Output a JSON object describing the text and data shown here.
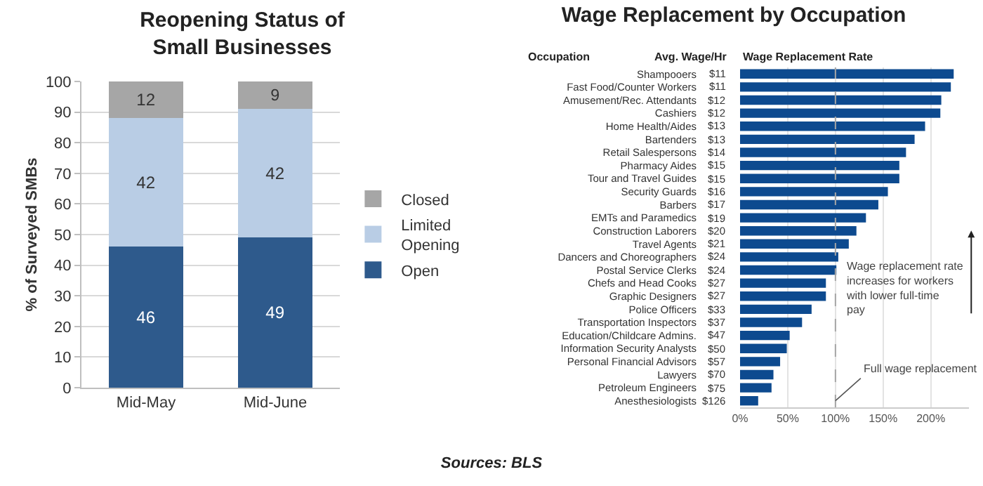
{
  "chart_data": [
    {
      "type": "bar",
      "title": "Reopening Status of Small Businesses",
      "ylabel": "% of Surveyed SMBs",
      "categories": [
        "Mid-May",
        "Mid-June"
      ],
      "stacked": true,
      "data_labels": true,
      "legend": "right",
      "grid": "y",
      "ylim": [
        0,
        100
      ],
      "yticks": [
        0,
        10,
        20,
        30,
        40,
        50,
        60,
        70,
        80,
        90,
        100
      ],
      "series": [
        {
          "name": "Open",
          "color": "#2e5a8c",
          "values": [
            46,
            49
          ]
        },
        {
          "name": "Limited Opening",
          "color": "#b9cde5",
          "values": [
            42,
            42
          ]
        },
        {
          "name": "Closed",
          "color": "#a6a6a6",
          "values": [
            12,
            9
          ]
        }
      ]
    },
    {
      "type": "bar",
      "orientation": "horizontal",
      "title": "Wage Replacement by Occupation",
      "grid": "x",
      "color": "#0d4a8f",
      "categories": [
        "Shampooers",
        "Fast Food/Counter Workers",
        "Amusement/Rec. Attendants",
        "Cashiers",
        "Home Health/Aides",
        "Bartenders",
        "Retail Salespersons",
        "Pharmacy Aides",
        "Tour and Travel Guides",
        "Security Guards",
        "Barbers",
        "EMTs and Paramedics",
        "Construction Laborers",
        "Travel Agents",
        "Dancers and Choreographers",
        "Postal Service Clerks",
        "Chefs and Head Cooks",
        "Graphic Designers",
        "Police Officers",
        "Transportation Inspectors",
        "Education/Childcare Admins.",
        "Information Security Analysts",
        "Personal Financial Advisors",
        "Lawyers",
        "Petroleum Engineers",
        "Anesthesiologists"
      ],
      "values": [
        224,
        221,
        211,
        210,
        194,
        183,
        174,
        167,
        167,
        155,
        145,
        132,
        122,
        114,
        103,
        101,
        90,
        90,
        75,
        65,
        52,
        49,
        42,
        35,
        33,
        19
      ],
      "xlim": [
        0,
        240
      ],
      "xticks": [
        {
          "value": 0,
          "label": "0%"
        },
        {
          "value": 50,
          "label": "50%"
        },
        {
          "value": 100,
          "label": "100%"
        },
        {
          "value": 150,
          "label": "150%"
        },
        {
          "value": 200,
          "label": "200%"
        }
      ],
      "ref_lines": [
        {
          "axis": "x",
          "value": 100,
          "label": "Full wage replacement",
          "color": "#a6a6a6",
          "line_style": "dashed"
        }
      ],
      "annotations": [
        "Occupation",
        "Avg. Wage/Hr",
        "Wage Replacement Rate",
        "Wage replacement rate increases for workers with lower full-time pay",
        "Sources: BLS",
        "$11",
        "$11",
        "$12",
        "$12",
        "$13",
        "$13",
        "$14",
        "$15",
        "$15",
        "$16",
        "$17",
        "$19",
        "$20",
        "$21",
        "$24",
        "$24",
        "$27",
        "$27",
        "$33",
        "$37",
        "$47",
        "$50",
        "$57",
        "$70",
        "$75",
        "$126"
      ]
    }
  ]
}
